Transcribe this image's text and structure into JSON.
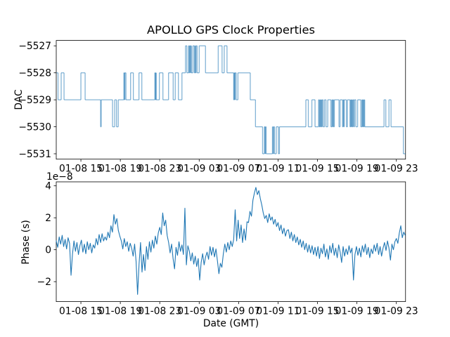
{
  "figure": {
    "title": "APOLLO GPS Clock Properties",
    "xlabel": "Date (GMT)",
    "background": "#ffffff",
    "line_color": "#1f77b4"
  },
  "x_axis": {
    "tick_hours": [
      15,
      19,
      23,
      27,
      31,
      35,
      39,
      43,
      47
    ],
    "tick_labels": [
      "01-08 15",
      "01-08 19",
      "01-08 23",
      "01-09 03",
      "01-09 07",
      "01-09 11",
      "01-09 15",
      "01-09 19",
      "01-09 23"
    ],
    "xlim": [
      12.5,
      47.93
    ],
    "x_is_hours_from": "01-08 00"
  },
  "chart_data": [
    {
      "type": "line",
      "name": "dac-vs-time",
      "draw_style": "steps-post",
      "ylabel": "DAC",
      "ylim": [
        -5531.2,
        -5526.8
      ],
      "y_tick_values": [
        -5527,
        -5528,
        -5529,
        -5530,
        -5531
      ],
      "y_tick_labels": [
        "−5527",
        "−5528",
        "−5529",
        "−5530",
        "−5531"
      ],
      "line_opacity": 0.55,
      "grid": false,
      "points": [
        [
          12.5,
          -5528
        ],
        [
          12.68,
          -5529
        ],
        [
          13.0,
          -5528
        ],
        [
          13.29,
          -5529
        ],
        [
          15.0,
          -5528
        ],
        [
          15.43,
          -5529
        ],
        [
          17.0,
          -5530
        ],
        [
          17.06,
          -5529
        ],
        [
          18.21,
          -5530
        ],
        [
          18.43,
          -5529
        ],
        [
          18.61,
          -5530
        ],
        [
          18.79,
          -5529
        ],
        [
          19.36,
          -5528
        ],
        [
          19.42,
          -5529
        ],
        [
          19.46,
          -5528
        ],
        [
          19.57,
          -5529
        ],
        [
          20.04,
          -5528
        ],
        [
          20.32,
          -5529
        ],
        [
          20.89,
          -5528
        ],
        [
          21.18,
          -5529
        ],
        [
          22.5,
          -5528
        ],
        [
          22.56,
          -5529
        ],
        [
          22.6,
          -5528
        ],
        [
          22.64,
          -5529
        ],
        [
          22.96,
          -5528
        ],
        [
          23.32,
          -5529
        ],
        [
          23.89,
          -5528
        ],
        [
          24.36,
          -5529
        ],
        [
          24.57,
          -5528
        ],
        [
          24.89,
          -5529
        ],
        [
          25.25,
          -5528
        ],
        [
          25.61,
          -5527
        ],
        [
          25.75,
          -5528
        ],
        [
          25.93,
          -5527
        ],
        [
          25.98,
          -5528
        ],
        [
          26.02,
          -5527
        ],
        [
          26.11,
          -5528
        ],
        [
          26.15,
          -5527
        ],
        [
          26.21,
          -5528
        ],
        [
          26.36,
          -5527
        ],
        [
          26.5,
          -5528
        ],
        [
          26.57,
          -5527
        ],
        [
          26.62,
          -5528
        ],
        [
          26.68,
          -5527
        ],
        [
          26.79,
          -5528
        ],
        [
          27.0,
          -5527
        ],
        [
          27.64,
          -5528
        ],
        [
          28.93,
          -5527
        ],
        [
          29.32,
          -5528
        ],
        [
          29.54,
          -5527
        ],
        [
          29.82,
          -5528
        ],
        [
          30.5,
          -5529
        ],
        [
          30.55,
          -5528
        ],
        [
          30.6,
          -5529
        ],
        [
          30.64,
          -5528
        ],
        [
          30.75,
          -5529
        ],
        [
          30.93,
          -5528
        ],
        [
          32.18,
          -5529
        ],
        [
          32.71,
          -5530
        ],
        [
          33.43,
          -5531
        ],
        [
          33.61,
          -5530
        ],
        [
          33.68,
          -5531
        ],
        [
          33.72,
          -5530
        ],
        [
          33.79,
          -5531
        ],
        [
          34.43,
          -5530
        ],
        [
          34.5,
          -5531
        ],
        [
          34.55,
          -5530
        ],
        [
          34.64,
          -5531
        ],
        [
          34.82,
          -5530
        ],
        [
          35.04,
          -5531
        ],
        [
          35.14,
          -5530
        ],
        [
          37.82,
          -5529
        ],
        [
          38.07,
          -5530
        ],
        [
          38.43,
          -5529
        ],
        [
          38.75,
          -5530
        ],
        [
          39.11,
          -5529
        ],
        [
          39.18,
          -5530
        ],
        [
          39.24,
          -5529
        ],
        [
          39.29,
          -5530
        ],
        [
          39.36,
          -5529
        ],
        [
          39.42,
          -5530
        ],
        [
          39.48,
          -5529
        ],
        [
          39.57,
          -5530
        ],
        [
          39.71,
          -5529
        ],
        [
          39.86,
          -5530
        ],
        [
          40.04,
          -5529
        ],
        [
          40.36,
          -5530
        ],
        [
          40.46,
          -5529
        ],
        [
          40.52,
          -5530
        ],
        [
          40.58,
          -5529
        ],
        [
          40.64,
          -5530
        ],
        [
          40.71,
          -5529
        ],
        [
          41.18,
          -5530
        ],
        [
          41.29,
          -5529
        ],
        [
          41.54,
          -5530
        ],
        [
          41.61,
          -5529
        ],
        [
          41.66,
          -5530
        ],
        [
          41.71,
          -5529
        ],
        [
          41.93,
          -5530
        ],
        [
          42.04,
          -5529
        ],
        [
          42.29,
          -5530
        ],
        [
          42.36,
          -5529
        ],
        [
          42.42,
          -5530
        ],
        [
          42.48,
          -5529
        ],
        [
          42.54,
          -5530
        ],
        [
          42.6,
          -5529
        ],
        [
          42.68,
          -5530
        ],
        [
          42.75,
          -5529
        ],
        [
          42.89,
          -5530
        ],
        [
          43.07,
          -5529
        ],
        [
          43.39,
          -5530
        ],
        [
          43.5,
          -5529
        ],
        [
          43.56,
          -5530
        ],
        [
          43.62,
          -5529
        ],
        [
          43.68,
          -5530
        ],
        [
          43.73,
          -5529
        ],
        [
          43.79,
          -5530
        ],
        [
          45.75,
          -5529
        ],
        [
          45.93,
          -5530
        ],
        [
          46.25,
          -5529
        ],
        [
          46.46,
          -5530
        ],
        [
          47.71,
          -5531
        ],
        [
          47.93,
          -5531
        ]
      ]
    },
    {
      "type": "line",
      "name": "phase-vs-time",
      "ylabel": "Phase (s)",
      "offset_text": "1e−8",
      "y_scale_factor": "1e-8",
      "ylim": [
        -3.25,
        4.25
      ],
      "y_tick_values": [
        4,
        2,
        0,
        -2
      ],
      "y_tick_labels": [
        "4",
        "2",
        "0",
        "−2"
      ],
      "grid": false,
      "x_start": 12.5,
      "x_step": 0.15,
      "y": [
        0.55,
        0.15,
        0.8,
        0.35,
        0.9,
        0.2,
        0.65,
        0.05,
        0.75,
        0.4,
        -1.6,
        -0.25,
        0.55,
        -0.1,
        0.45,
        -0.3,
        0.25,
        0.6,
        -0.15,
        0.35,
        -0.25,
        0.5,
        0.0,
        0.4,
        -0.2,
        0.3,
        0.1,
        0.7,
        0.3,
        0.95,
        0.45,
        1.0,
        0.55,
        0.8,
        0.6,
        1.1,
        0.75,
        1.5,
        1.1,
        2.2,
        1.6,
        1.95,
        1.2,
        0.85,
        0.55,
        0.05,
        0.7,
        0.2,
        0.5,
        -0.1,
        0.4,
        0.1,
        -0.4,
        0.35,
        -0.75,
        -2.8,
        -0.9,
        0.45,
        -1.4,
        -0.3,
        -1.3,
        0.2,
        -0.6,
        0.5,
        -0.15,
        0.6,
        0.1,
        0.85,
        0.35,
        1.05,
        1.4,
        0.95,
        2.3,
        1.5,
        1.85,
        0.9,
        0.45,
        -0.2,
        0.35,
        -0.55,
        -1.2,
        0.15,
        -0.35,
        0.5,
        -0.1,
        0.3,
        -0.3,
        2.6,
        -0.95,
        0.25,
        -0.1,
        -0.7,
        -0.2,
        -0.9,
        -0.4,
        -1.05,
        -0.55,
        -1.9,
        -0.8,
        -0.25,
        -0.95,
        -0.45,
        -0.15,
        -0.6,
        0.2,
        -0.35,
        0.15,
        -0.45,
        0.05,
        -0.7,
        -1.5,
        -0.85,
        -1.1,
        -0.25,
        0.35,
        -0.15,
        0.45,
        0.0,
        0.55,
        0.2,
        0.65,
        2.5,
        0.55,
        1.85,
        0.7,
        1.55,
        0.45,
        1.3,
        0.6,
        1.75,
        1.7,
        2.4,
        2.1,
        3.1,
        3.55,
        3.9,
        3.45,
        3.7,
        3.2,
        2.8,
        2.3,
        1.95,
        2.15,
        1.7,
        2.25,
        1.85,
        2.05,
        1.6,
        1.9,
        1.45,
        1.7,
        1.2,
        1.55,
        1.0,
        1.35,
        0.85,
        1.2,
        1.25,
        0.7,
        1.1,
        0.55,
        0.95,
        0.45,
        0.8,
        0.3,
        0.65,
        0.15,
        0.55,
        0.0,
        0.4,
        -0.15,
        0.3,
        -0.2,
        0.25,
        -0.3,
        0.15,
        -0.4,
        0.2,
        -0.55,
        0.1,
        -0.25,
        0.35,
        -0.45,
        0.05,
        -0.6,
        0.25,
        -0.2,
        0.4,
        -0.35,
        0.1,
        -0.5,
        0.3,
        -0.15,
        -0.8,
        0.2,
        -0.4,
        0.05,
        -0.3,
        0.25,
        -0.2,
        0.1,
        -1.9,
        -0.3,
        0.2,
        -0.35,
        0.1,
        -0.45,
        0.25,
        -0.15,
        0.35,
        -0.3,
        0.15,
        -0.5,
        0.05,
        -0.25,
        0.3,
        -0.1,
        0.4,
        -0.3,
        0.2,
        -0.4,
        0.1,
        0.45,
        -0.05,
        0.55,
        0.1,
        -0.65,
        0.35,
        0.0,
        0.5,
        0.7,
        0.4,
        1.05,
        1.5,
        0.75,
        1.1,
        0.9
      ]
    }
  ]
}
